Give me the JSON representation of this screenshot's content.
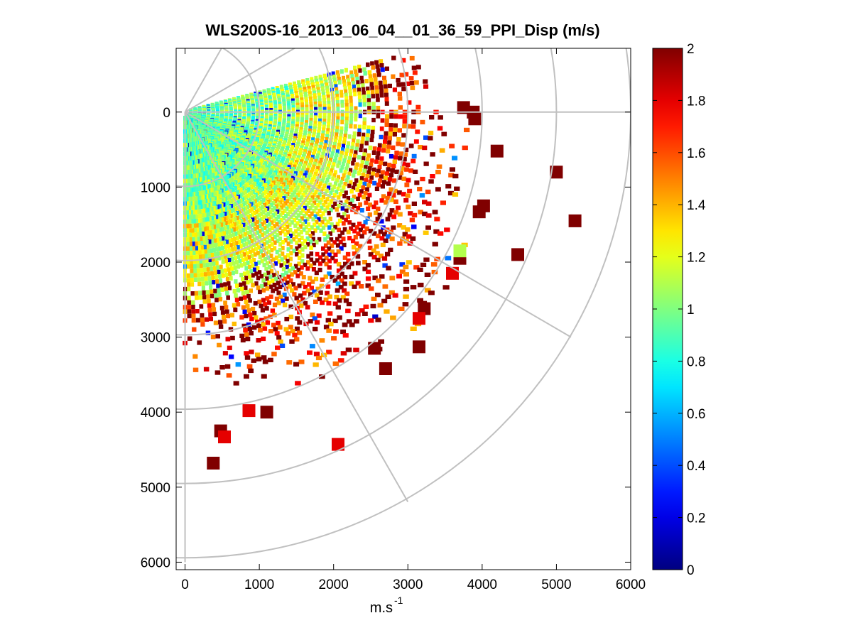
{
  "chart_data": {
    "type": "heatmap",
    "subtype": "polar-ppi-scan",
    "title": "WLS200S-16_2013_06_04__01_36_59_PPI_Disp (m/s)",
    "xlabel": "m.s",
    "xlabel_superscript": "-1",
    "ylabel": "",
    "xlim": [
      -120,
      6000
    ],
    "ylim": [
      -850,
      6100
    ],
    "y_direction": "down",
    "x_ticks": [
      0,
      1000,
      2000,
      3000,
      4000,
      5000,
      6000
    ],
    "x_tick_labels": [
      "0",
      "1000",
      "2000",
      "3000",
      "4000",
      "5000",
      "6000"
    ],
    "y_ticks": [
      0,
      1000,
      2000,
      3000,
      4000,
      5000,
      6000
    ],
    "y_tick_labels": [
      "0",
      "1000",
      "2000",
      "3000",
      "4000",
      "5000",
      "6000"
    ],
    "polar_grid": {
      "origin": [
        0,
        0
      ],
      "ring_radii": [
        1000,
        2000,
        3000,
        4000,
        5000,
        6000
      ],
      "spoke_angles_deg": [
        -60,
        -30,
        0,
        30,
        60,
        90
      ]
    },
    "scan_sector": {
      "angle_min_deg": -15,
      "angle_max_deg": 90,
      "range_min_m": 80,
      "range_max_m": 4800
    },
    "colorbar": {
      "colormap": "jet",
      "min": 0,
      "max": 2,
      "ticks": [
        0,
        0.2,
        0.4,
        0.6,
        0.8,
        1,
        1.2,
        1.4,
        1.6,
        1.8,
        2
      ],
      "tick_labels": [
        "0",
        "0.2",
        "0.4",
        "0.6",
        "0.8",
        "1",
        "1.2",
        "1.4",
        "1.6",
        "1.8",
        "2"
      ]
    },
    "value_profile": {
      "description": "dispersion increases with range: ~0.9 near lidar, ~1.2 mid-range, saturated 2 at far edge",
      "mean_near": 0.9,
      "mean_mid": 1.2,
      "mean_far": 2.0
    },
    "far_returns": [
      {
        "x": 380,
        "y": 4680,
        "value": 2.0
      },
      {
        "x": 480,
        "y": 4250,
        "value": 2.0
      },
      {
        "x": 530,
        "y": 4330,
        "value": 1.8
      },
      {
        "x": 2060,
        "y": 4430,
        "value": 1.8
      },
      {
        "x": 1100,
        "y": 4000,
        "value": 2.0
      },
      {
        "x": 860,
        "y": 3980,
        "value": 1.8
      },
      {
        "x": 5250,
        "y": 1450,
        "value": 2.0
      },
      {
        "x": 4480,
        "y": 1900,
        "value": 2.0
      },
      {
        "x": 4020,
        "y": 1250,
        "value": 2.0
      },
      {
        "x": 3960,
        "y": 1330,
        "value": 2.0
      },
      {
        "x": 5000,
        "y": 800,
        "value": 2.0
      },
      {
        "x": 4200,
        "y": 520,
        "value": 2.0
      },
      {
        "x": 3150,
        "y": 3130,
        "value": 2.0
      },
      {
        "x": 2700,
        "y": 3420,
        "value": 2.0
      },
      {
        "x": 2550,
        "y": 3150,
        "value": 2.0
      },
      {
        "x": 3220,
        "y": 2620,
        "value": 2.0
      },
      {
        "x": 3700,
        "y": 1950,
        "value": 2.0
      },
      {
        "x": 3700,
        "y": 1850,
        "value": 1.1
      },
      {
        "x": 3150,
        "y": 2750,
        "value": 1.8
      },
      {
        "x": 3880,
        "y": 0,
        "value": 2.0
      },
      {
        "x": 3750,
        "y": -60,
        "value": 2.0
      },
      {
        "x": 3900,
        "y": 90,
        "value": 2.0
      },
      {
        "x": 3600,
        "y": 2150,
        "value": 1.8
      }
    ]
  }
}
